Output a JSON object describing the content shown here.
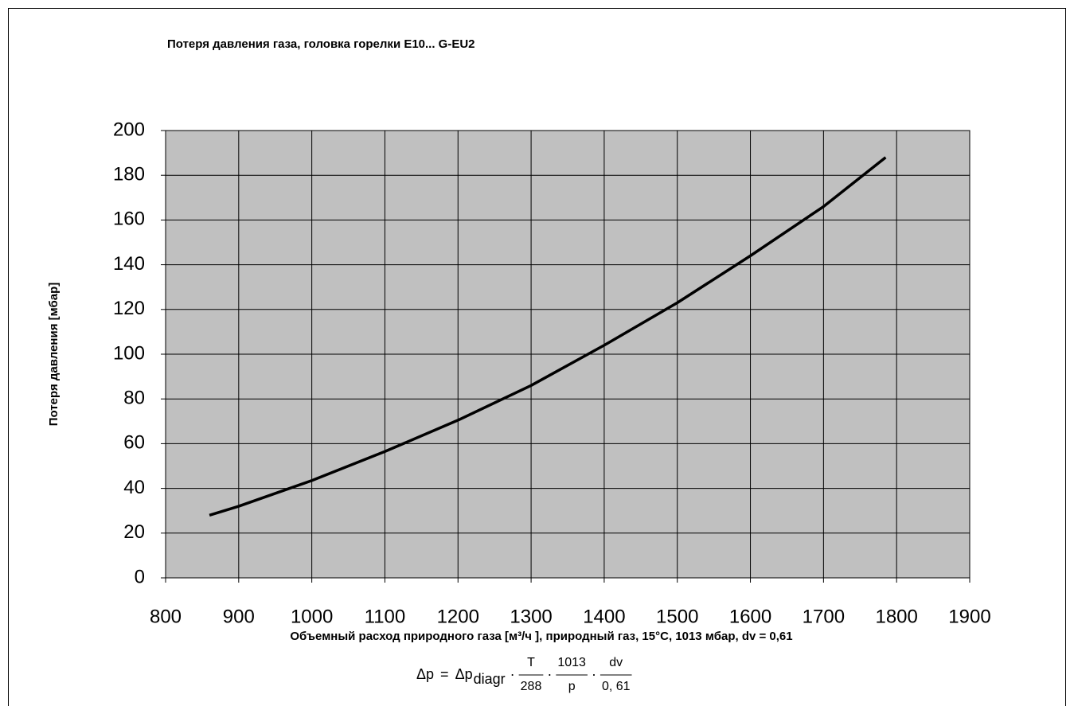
{
  "chart_data": {
    "type": "line",
    "title": "Потеря давления газа, головка горелки E10... G-EU2",
    "x_label": "Объемный расход природного газа [м³/ч ], природный газ, 15°C, 1013 мбар, dv = 0,61",
    "y_label": "Потеря давления [мбар]",
    "x": [
      860,
      900,
      1000,
      1100,
      1200,
      1300,
      1400,
      1500,
      1600,
      1700,
      1785
    ],
    "series": [
      {
        "name": "Потеря давления",
        "color": "#000000",
        "values": [
          28,
          32,
          43.5,
          56.5,
          70.5,
          86,
          104,
          123,
          144,
          166,
          188
        ]
      }
    ],
    "xlim": [
      800,
      1900
    ],
    "xticks": [
      800,
      900,
      1000,
      1100,
      1200,
      1300,
      1400,
      1500,
      1600,
      1700,
      1800,
      1900
    ],
    "ylim": [
      0,
      200
    ],
    "yticks": [
      0,
      20,
      40,
      60,
      80,
      100,
      120,
      140,
      160,
      180,
      200
    ],
    "grid": true,
    "plot_background": "#c0c0c0",
    "formula": {
      "lhs": "Δp",
      "eq": "=",
      "term": "Δp",
      "sub": "diagr",
      "operator": "·",
      "fractions": [
        {
          "num": "T",
          "den": "288"
        },
        {
          "num": "1013",
          "den": "p"
        },
        {
          "num": "dv",
          "den": "0, 61"
        }
      ]
    }
  }
}
